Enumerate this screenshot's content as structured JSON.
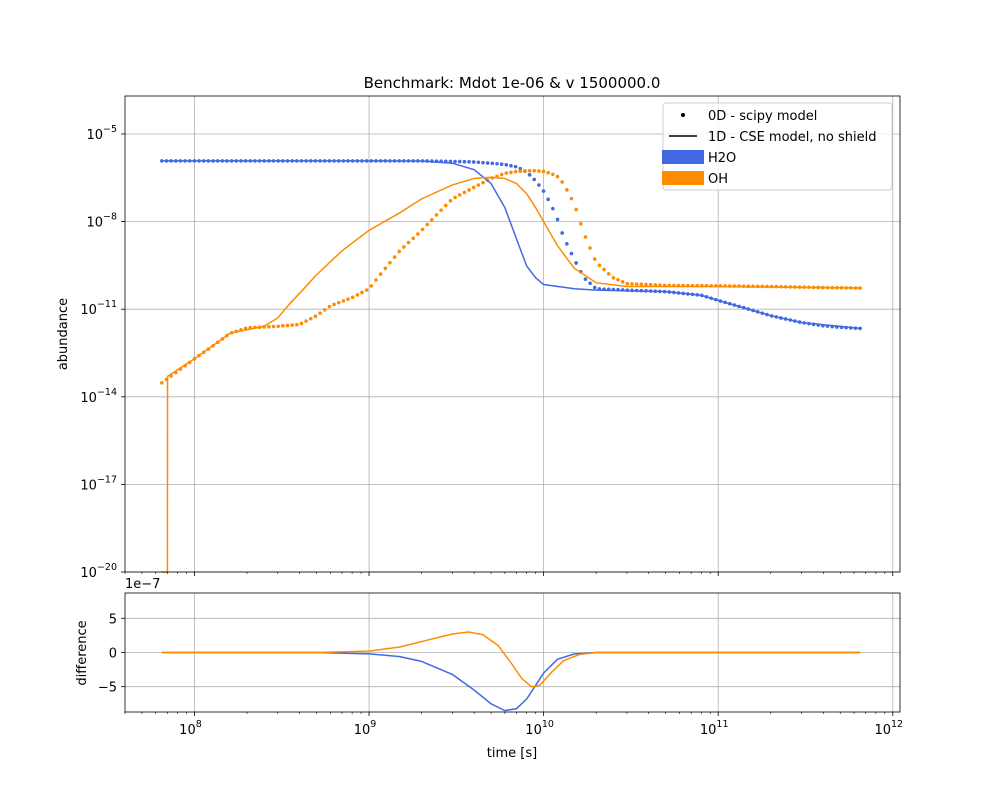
{
  "chart_data": [
    {
      "type": "line",
      "title": "Benchmark: Mdot 1e-06 & v 1500000.0",
      "xlabel": "",
      "ylabel": "abundance",
      "xscale": "log",
      "yscale": "log",
      "xlim": [
        40000000,
        1100000000000
      ],
      "ylim": [
        1e-20,
        0.0002
      ],
      "x_ticks": [
        100000000.0,
        1000000000.0,
        10000000000.0,
        100000000000.0,
        1000000000000.0
      ],
      "y_ticks": [
        1e-20,
        1e-17,
        1e-14,
        1e-11,
        1e-08,
        1e-05
      ],
      "y_tick_labels": [
        "10",
        "10",
        "10",
        "10",
        "10",
        "10"
      ],
      "y_tick_exponents": [
        "−20",
        "−17",
        "−14",
        "−11",
        "−8",
        "−5"
      ],
      "grid": true,
      "legend_position": "top-right",
      "legend": [
        {
          "label": "0D - scipy model",
          "marker": "dot"
        },
        {
          "label": "1D - CSE model, no shield",
          "marker": "line"
        },
        {
          "label": "H2O",
          "marker": "patch",
          "color": "#4169e1"
        },
        {
          "label": "OH",
          "marker": "patch",
          "color": "#ff8c00"
        }
      ],
      "series": [
        {
          "name": "H2O",
          "style": "dots",
          "color": "#4169e1",
          "points": [
            [
              65000000.0,
              1.2e-06
            ],
            [
              100000000.0,
              1.2e-06
            ],
            [
              1000000000.0,
              1.2e-06
            ],
            [
              2000000000.0,
              1.2e-06
            ],
            [
              3000000000.0,
              1.15e-06
            ],
            [
              4000000000.0,
              1.1e-06
            ],
            [
              5000000000.0,
              1e-06
            ],
            [
              6000000000.0,
              9e-07
            ],
            [
              7000000000.0,
              7.5e-07
            ],
            [
              8000000000.0,
              5e-07
            ],
            [
              9000000000.0,
              2.5e-07
            ],
            [
              10000000000.0,
              1.1e-07
            ],
            [
              11000000000.0,
              4e-08
            ],
            [
              12000000000.0,
              1.2e-08
            ],
            [
              13000000000.0,
              3e-09
            ],
            [
              15000000000.0,
              5e-10
            ],
            [
              17000000000.0,
              1.2e-10
            ],
            [
              20000000000.0,
              5e-11
            ],
            [
              30000000000.0,
              4.5e-11
            ],
            [
              50000000000.0,
              4e-11
            ],
            [
              80000000000.0,
              3e-11
            ],
            [
              100000000000.0,
              2e-11
            ],
            [
              150000000000.0,
              1e-11
            ],
            [
              200000000000.0,
              6e-12
            ],
            [
              300000000000.0,
              3.5e-12
            ],
            [
              400000000000.0,
              2.7e-12
            ],
            [
              500000000000.0,
              2.4e-12
            ],
            [
              650000000000.0,
              2.2e-12
            ]
          ]
        },
        {
          "name": "OH",
          "style": "dots",
          "color": "#ff8c00",
          "points": [
            [
              65000000.0,
              3e-14
            ],
            [
              100000000.0,
              2e-13
            ],
            [
              130000000.0,
              6e-13
            ],
            [
              160000000.0,
              1.5e-12
            ],
            [
              200000000.0,
              2.3e-12
            ],
            [
              300000000.0,
              2.6e-12
            ],
            [
              400000000.0,
              3e-12
            ],
            [
              500000000.0,
              6e-12
            ],
            [
              600000000.0,
              1.3e-11
            ],
            [
              800000000.0,
              2.5e-11
            ],
            [
              1000000000.0,
              5e-11
            ],
            [
              1200000000.0,
              2e-10
            ],
            [
              1500000000.0,
              1e-09
            ],
            [
              2000000000.0,
              5e-09
            ],
            [
              2500000000.0,
              2e-08
            ],
            [
              3000000000.0,
              6e-08
            ],
            [
              4000000000.0,
              1.5e-07
            ],
            [
              5000000000.0,
              3e-07
            ],
            [
              6000000000.0,
              4.5e-07
            ],
            [
              7000000000.0,
              5.2e-07
            ],
            [
              8000000000.0,
              5.5e-07
            ],
            [
              9000000000.0,
              5.5e-07
            ],
            [
              10000000000.0,
              5.2e-07
            ],
            [
              11000000000.0,
              4.5e-07
            ],
            [
              12000000000.0,
              3.5e-07
            ],
            [
              13000000000.0,
              2e-07
            ],
            [
              15000000000.0,
              4e-08
            ],
            [
              17000000000.0,
              4e-09
            ],
            [
              20000000000.0,
              4e-10
            ],
            [
              25000000000.0,
              1.2e-10
            ],
            [
              30000000000.0,
              7.5e-11
            ],
            [
              50000000000.0,
              6.5e-11
            ],
            [
              100000000000.0,
              6.3e-11
            ],
            [
              200000000000.0,
              6e-11
            ],
            [
              400000000000.0,
              5.5e-11
            ],
            [
              650000000000.0,
              5.3e-11
            ]
          ]
        },
        {
          "name": "H2O",
          "style": "line",
          "color": "#4169e1",
          "points": [
            [
              65000000.0,
              1.2e-06
            ],
            [
              1000000000.0,
              1.2e-06
            ],
            [
              2000000000.0,
              1.18e-06
            ],
            [
              3000000000.0,
              1e-06
            ],
            [
              4000000000.0,
              6e-07
            ],
            [
              5000000000.0,
              2e-07
            ],
            [
              6000000000.0,
              3e-08
            ],
            [
              7000000000.0,
              2.5e-09
            ],
            [
              8000000000.0,
              3e-10
            ],
            [
              9000000000.0,
              1.2e-10
            ],
            [
              10000000000.0,
              7e-11
            ],
            [
              15000000000.0,
              5e-11
            ],
            [
              20000000000.0,
              4.5e-11
            ],
            [
              50000000000.0,
              4e-11
            ],
            [
              80000000000.0,
              3e-11
            ],
            [
              100000000000.0,
              2e-11
            ],
            [
              200000000000.0,
              6e-12
            ],
            [
              300000000000.0,
              3.5e-12
            ],
            [
              650000000000.0,
              2.2e-12
            ]
          ]
        },
        {
          "name": "OH",
          "style": "line",
          "color": "#ff8c00",
          "points": [
            [
              65000000.0,
              1e-20
            ],
            [
              70000000.0,
              1e-20
            ],
            [
              70100000.0,
              5e-14
            ],
            [
              100000000.0,
              2e-13
            ],
            [
              160000000.0,
              1.5e-12
            ],
            [
              250000000.0,
              2.6e-12
            ],
            [
              300000000.0,
              5e-12
            ],
            [
              350000000.0,
              1.5e-11
            ],
            [
              400000000.0,
              3.5e-11
            ],
            [
              500000000.0,
              1.5e-10
            ],
            [
              700000000.0,
              1e-09
            ],
            [
              1000000000.0,
              5e-09
            ],
            [
              1500000000.0,
              2e-08
            ],
            [
              2000000000.0,
              6e-08
            ],
            [
              3000000000.0,
              1.8e-07
            ],
            [
              4000000000.0,
              3e-07
            ],
            [
              5000000000.0,
              3.3e-07
            ],
            [
              6000000000.0,
              3e-07
            ],
            [
              7000000000.0,
              2e-07
            ],
            [
              8000000000.0,
              9e-08
            ],
            [
              9000000000.0,
              3e-08
            ],
            [
              10000000000.0,
              1e-08
            ],
            [
              12000000000.0,
              1.5e-09
            ],
            [
              15000000000.0,
              2.5e-10
            ],
            [
              20000000000.0,
              8e-11
            ],
            [
              30000000000.0,
              6e-11
            ],
            [
              100000000000.0,
              6e-11
            ],
            [
              650000000000.0,
              5.3e-11
            ]
          ]
        }
      ]
    },
    {
      "type": "line",
      "title": "",
      "xlabel": "time [s]",
      "ylabel": "difference",
      "offset_text": "1e−7",
      "xscale": "log",
      "yscale": "linear",
      "xlim": [
        40000000,
        1100000000000
      ],
      "ylim": [
        -8.7,
        8.7
      ],
      "y_unit_scale": 1e-07,
      "x_ticks": [
        100000000.0,
        1000000000.0,
        10000000000.0,
        100000000000.0,
        1000000000000.0
      ],
      "x_tick_labels": [
        "10",
        "10",
        "10",
        "10",
        "10"
      ],
      "x_tick_exponents": [
        "8",
        "9",
        "10",
        "11",
        "12"
      ],
      "y_ticks": [
        -5,
        0,
        5
      ],
      "y_tick_labels": [
        "−5",
        "0",
        "5"
      ],
      "grid": true,
      "series": [
        {
          "name": "H2O",
          "color": "#4169e1",
          "points": [
            [
              65000000.0,
              0
            ],
            [
              500000000.0,
              0
            ],
            [
              1000000000.0,
              -0.2
            ],
            [
              1500000000.0,
              -0.6
            ],
            [
              2000000000.0,
              -1.3
            ],
            [
              3000000000.0,
              -3.2
            ],
            [
              4000000000.0,
              -5.5
            ],
            [
              5000000000.0,
              -7.5
            ],
            [
              6000000000.0,
              -8.5
            ],
            [
              7000000000.0,
              -8.2
            ],
            [
              8000000000.0,
              -6.8
            ],
            [
              9000000000.0,
              -4.8
            ],
            [
              10000000000.0,
              -3
            ],
            [
              12000000000.0,
              -1
            ],
            [
              15000000000.0,
              -0.2
            ],
            [
              20000000000.0,
              0
            ],
            [
              650000000000.0,
              0
            ]
          ]
        },
        {
          "name": "OH",
          "color": "#ff8c00",
          "points": [
            [
              65000000.0,
              0
            ],
            [
              500000000.0,
              0
            ],
            [
              1000000000.0,
              0.2
            ],
            [
              1500000000.0,
              0.8
            ],
            [
              2000000000.0,
              1.6
            ],
            [
              3000000000.0,
              2.7
            ],
            [
              3700000000.0,
              3
            ],
            [
              4500000000.0,
              2.6
            ],
            [
              5500000000.0,
              1
            ],
            [
              6500000000.0,
              -1.5
            ],
            [
              7500000000.0,
              -3.8
            ],
            [
              8500000000.0,
              -5
            ],
            [
              9500000000.0,
              -4.8
            ],
            [
              11000000000.0,
              -3
            ],
            [
              13000000000.0,
              -1.2
            ],
            [
              16000000000.0,
              -0.3
            ],
            [
              20000000000.0,
              0
            ],
            [
              650000000000.0,
              0
            ]
          ]
        }
      ]
    }
  ]
}
